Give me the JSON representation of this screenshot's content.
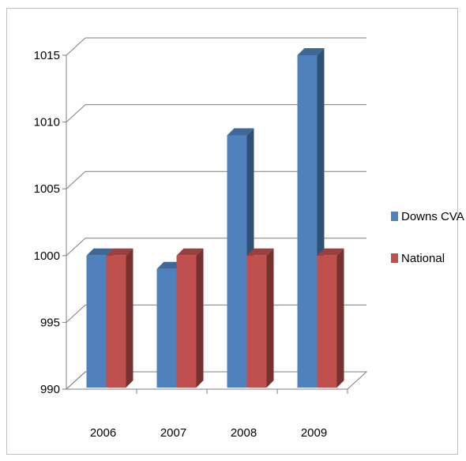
{
  "chart_data": {
    "type": "bar",
    "title": "",
    "xlabel": "",
    "ylabel": "",
    "categories": [
      "2006",
      "2007",
      "2008",
      "2009"
    ],
    "series": [
      {
        "name": "Downs CVA",
        "values": [
          1000,
          999,
          1009,
          1015
        ],
        "color": "#4f81bd"
      },
      {
        "name": "National",
        "values": [
          1000,
          1000,
          1000,
          1000
        ],
        "color": "#c0504d"
      }
    ],
    "ylim": [
      990,
      1015
    ],
    "yticks": [
      "990",
      "995",
      "1000",
      "1005",
      "1010",
      "1015"
    ],
    "grid": true,
    "legend": "right",
    "style": "3d-clustered-column"
  }
}
